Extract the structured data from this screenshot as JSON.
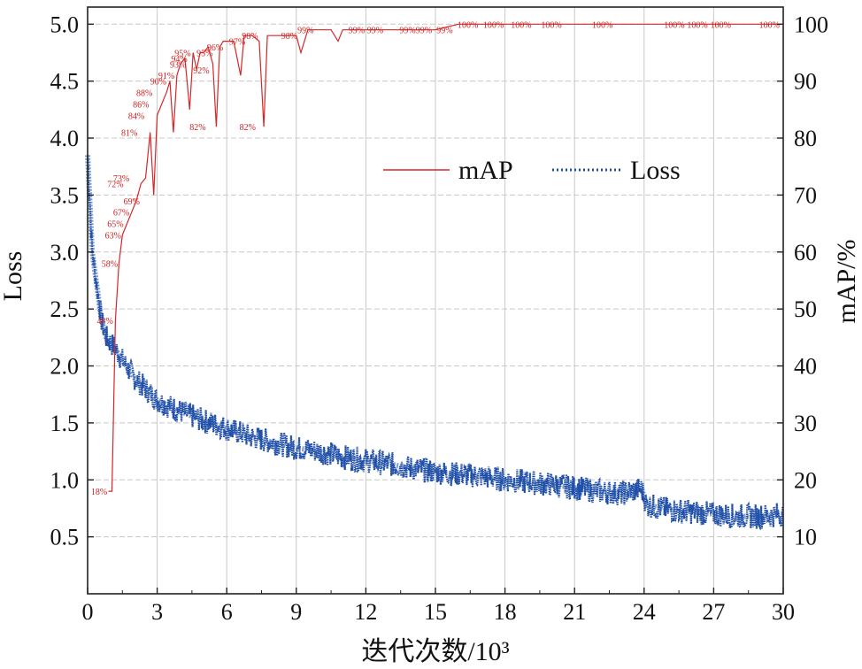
{
  "chart_data": {
    "type": "line",
    "xlabel": "迭代次数/10³",
    "ylabel_left": "Loss",
    "ylabel_right": "mAP/%",
    "xlim": [
      0,
      30
    ],
    "ylim_left": [
      0,
      5.15
    ],
    "ylim_right": [
      0,
      103
    ],
    "x_ticks": [
      {
        "v": 0,
        "label": "0"
      },
      {
        "v": 3,
        "label": "3"
      },
      {
        "v": 6,
        "label": "6"
      },
      {
        "v": 9,
        "label": "9"
      },
      {
        "v": 12,
        "label": "12"
      },
      {
        "v": 15,
        "label": "15"
      },
      {
        "v": 18,
        "label": "18"
      },
      {
        "v": 21,
        "label": "21"
      },
      {
        "v": 24,
        "label": "24"
      },
      {
        "v": 27,
        "label": "27"
      },
      {
        "v": 30,
        "label": "30"
      }
    ],
    "y_left_ticks": [
      {
        "v": 0.5,
        "label": "0.5"
      },
      {
        "v": 1.0,
        "label": "1.0"
      },
      {
        "v": 1.5,
        "label": "1.5"
      },
      {
        "v": 2.0,
        "label": "2.0"
      },
      {
        "v": 2.5,
        "label": "2.5"
      },
      {
        "v": 3.0,
        "label": "3.0"
      },
      {
        "v": 3.5,
        "label": "3.5"
      },
      {
        "v": 4.0,
        "label": "4.0"
      },
      {
        "v": 4.5,
        "label": "4.5"
      },
      {
        "v": 5.0,
        "label": "5.0"
      }
    ],
    "y_right_ticks": [
      {
        "v": 10,
        "label": "10"
      },
      {
        "v": 20,
        "label": "20"
      },
      {
        "v": 30,
        "label": "30"
      },
      {
        "v": 40,
        "label": "40"
      },
      {
        "v": 50,
        "label": "50"
      },
      {
        "v": 60,
        "label": "60"
      },
      {
        "v": 70,
        "label": "70"
      },
      {
        "v": 80,
        "label": "80"
      },
      {
        "v": 90,
        "label": "90"
      },
      {
        "v": 100,
        "label": "100"
      }
    ],
    "grid": true,
    "legend": {
      "placement": "upper-middle",
      "entries": [
        "mAP",
        "Loss"
      ]
    },
    "series": [
      {
        "name": "mAP",
        "axis": "right",
        "color": "#d62728",
        "style": "solid",
        "x": [
          0.9,
          1.05,
          1.2,
          1.35,
          1.5,
          1.7,
          1.9,
          2.1,
          2.3,
          2.5,
          2.7,
          2.85,
          3.0,
          3.2,
          3.4,
          3.55,
          3.7,
          3.85,
          4.0,
          4.2,
          4.4,
          4.55,
          4.7,
          4.85,
          5.0,
          5.2,
          5.4,
          5.55,
          5.7,
          5.85,
          6.0,
          6.3,
          6.6,
          6.75,
          6.9,
          7.1,
          7.4,
          7.6,
          7.75,
          7.9,
          8.2,
          8.6,
          9.0,
          9.2,
          9.5,
          10.0,
          10.5,
          10.8,
          11.0,
          11.5,
          12.0,
          12.5,
          13.0,
          13.5,
          14.0,
          15.0,
          16.0,
          17.0,
          18.0,
          19.0,
          20.0,
          21.0,
          22.0,
          23.0,
          24.0,
          25.0,
          26.0,
          27.0,
          28.0,
          29.0,
          30.0
        ],
        "values": [
          18,
          18,
          48,
          58,
          63,
          65,
          67,
          69,
          72,
          73,
          81,
          70,
          84,
          86,
          88,
          90,
          81,
          91,
          93,
          94,
          85,
          95,
          92,
          95,
          95,
          96,
          93,
          82,
          96,
          97,
          97,
          97,
          91,
          98,
          98,
          98,
          97,
          82,
          98,
          98,
          98,
          98,
          98,
          95,
          99,
          99,
          99,
          97,
          99,
          99,
          99,
          99,
          99,
          99,
          99,
          99,
          100,
          100,
          100,
          100,
          100,
          100,
          100,
          100,
          100,
          100,
          100,
          100,
          100,
          100,
          100
        ]
      },
      {
        "name": "Loss",
        "axis": "left",
        "color": "#1f4fa8",
        "style": "dotted",
        "x": [
          0,
          0.2,
          0.4,
          0.6,
          0.8,
          1.0,
          1.2,
          1.5,
          2.0,
          2.5,
          3.0,
          3.5,
          4.0,
          5.0,
          6.0,
          7.0,
          8.0,
          9.0,
          10.0,
          11.0,
          12.0,
          13.0,
          14.0,
          15.0,
          16.0,
          17.0,
          18.0,
          19.0,
          20.0,
          21.0,
          22.0,
          23.0,
          23.9,
          24.1,
          25.0,
          26.0,
          27.0,
          28.0,
          29.0,
          30.0
        ],
        "values": [
          3.85,
          3.0,
          2.7,
          2.4,
          2.25,
          2.2,
          2.15,
          2.05,
          1.9,
          1.8,
          1.7,
          1.65,
          1.6,
          1.52,
          1.45,
          1.38,
          1.33,
          1.28,
          1.25,
          1.2,
          1.17,
          1.14,
          1.1,
          1.07,
          1.05,
          1.03,
          1.0,
          0.98,
          0.96,
          0.93,
          0.9,
          0.88,
          0.92,
          0.78,
          0.74,
          0.72,
          0.7,
          0.68,
          0.68,
          0.7
        ]
      }
    ],
    "annotations": [
      {
        "x": 0.5,
        "y": 18,
        "text": "18%"
      },
      {
        "x": 0.75,
        "y": 48,
        "text": "48%"
      },
      {
        "x": 0.95,
        "y": 58,
        "text": "58%"
      },
      {
        "x": 1.1,
        "y": 63,
        "text": "63%"
      },
      {
        "x": 1.2,
        "y": 65,
        "text": "65%"
      },
      {
        "x": 1.45,
        "y": 67,
        "text": "67%"
      },
      {
        "x": 1.9,
        "y": 69,
        "text": "69%"
      },
      {
        "x": 1.2,
        "y": 72,
        "text": "72%"
      },
      {
        "x": 1.45,
        "y": 73,
        "text": "73%"
      },
      {
        "x": 1.8,
        "y": 81,
        "text": "81%"
      },
      {
        "x": 2.1,
        "y": 84,
        "text": "84%"
      },
      {
        "x": 2.3,
        "y": 86,
        "text": "86%"
      },
      {
        "x": 2.45,
        "y": 88,
        "text": "88%"
      },
      {
        "x": 3.05,
        "y": 90,
        "text": "90%"
      },
      {
        "x": 3.4,
        "y": 91,
        "text": "91%"
      },
      {
        "x": 3.9,
        "y": 93,
        "text": "93%"
      },
      {
        "x": 3.95,
        "y": 94,
        "text": "94%"
      },
      {
        "x": 4.1,
        "y": 95,
        "text": "95%"
      },
      {
        "x": 4.9,
        "y": 92,
        "text": "92%"
      },
      {
        "x": 5.05,
        "y": 95,
        "text": "95%"
      },
      {
        "x": 4.75,
        "y": 82,
        "text": "82%"
      },
      {
        "x": 5.5,
        "y": 96,
        "text": "96%"
      },
      {
        "x": 6.45,
        "y": 97,
        "text": "97%"
      },
      {
        "x": 7.0,
        "y": 98,
        "text": "98%"
      },
      {
        "x": 6.9,
        "y": 82,
        "text": "82%"
      },
      {
        "x": 8.7,
        "y": 98,
        "text": "98%"
      },
      {
        "x": 9.4,
        "y": 99,
        "text": "99%"
      },
      {
        "x": 11.6,
        "y": 99,
        "text": "99%"
      },
      {
        "x": 12.4,
        "y": 99,
        "text": "99%"
      },
      {
        "x": 13.8,
        "y": 99,
        "text": "99%"
      },
      {
        "x": 14.5,
        "y": 99,
        "text": "99%"
      },
      {
        "x": 15.4,
        "y": 99,
        "text": "99%"
      },
      {
        "x": 16.4,
        "y": 100,
        "text": "100%"
      },
      {
        "x": 17.5,
        "y": 100,
        "text": "100%"
      },
      {
        "x": 18.7,
        "y": 100,
        "text": "100%"
      },
      {
        "x": 20.0,
        "y": 100,
        "text": "100%"
      },
      {
        "x": 22.2,
        "y": 100,
        "text": "100%"
      },
      {
        "x": 25.3,
        "y": 100,
        "text": "100%"
      },
      {
        "x": 26.3,
        "y": 100,
        "text": "100%"
      },
      {
        "x": 27.3,
        "y": 100,
        "text": "100%"
      },
      {
        "x": 29.4,
        "y": 100,
        "text": "100%"
      }
    ]
  }
}
